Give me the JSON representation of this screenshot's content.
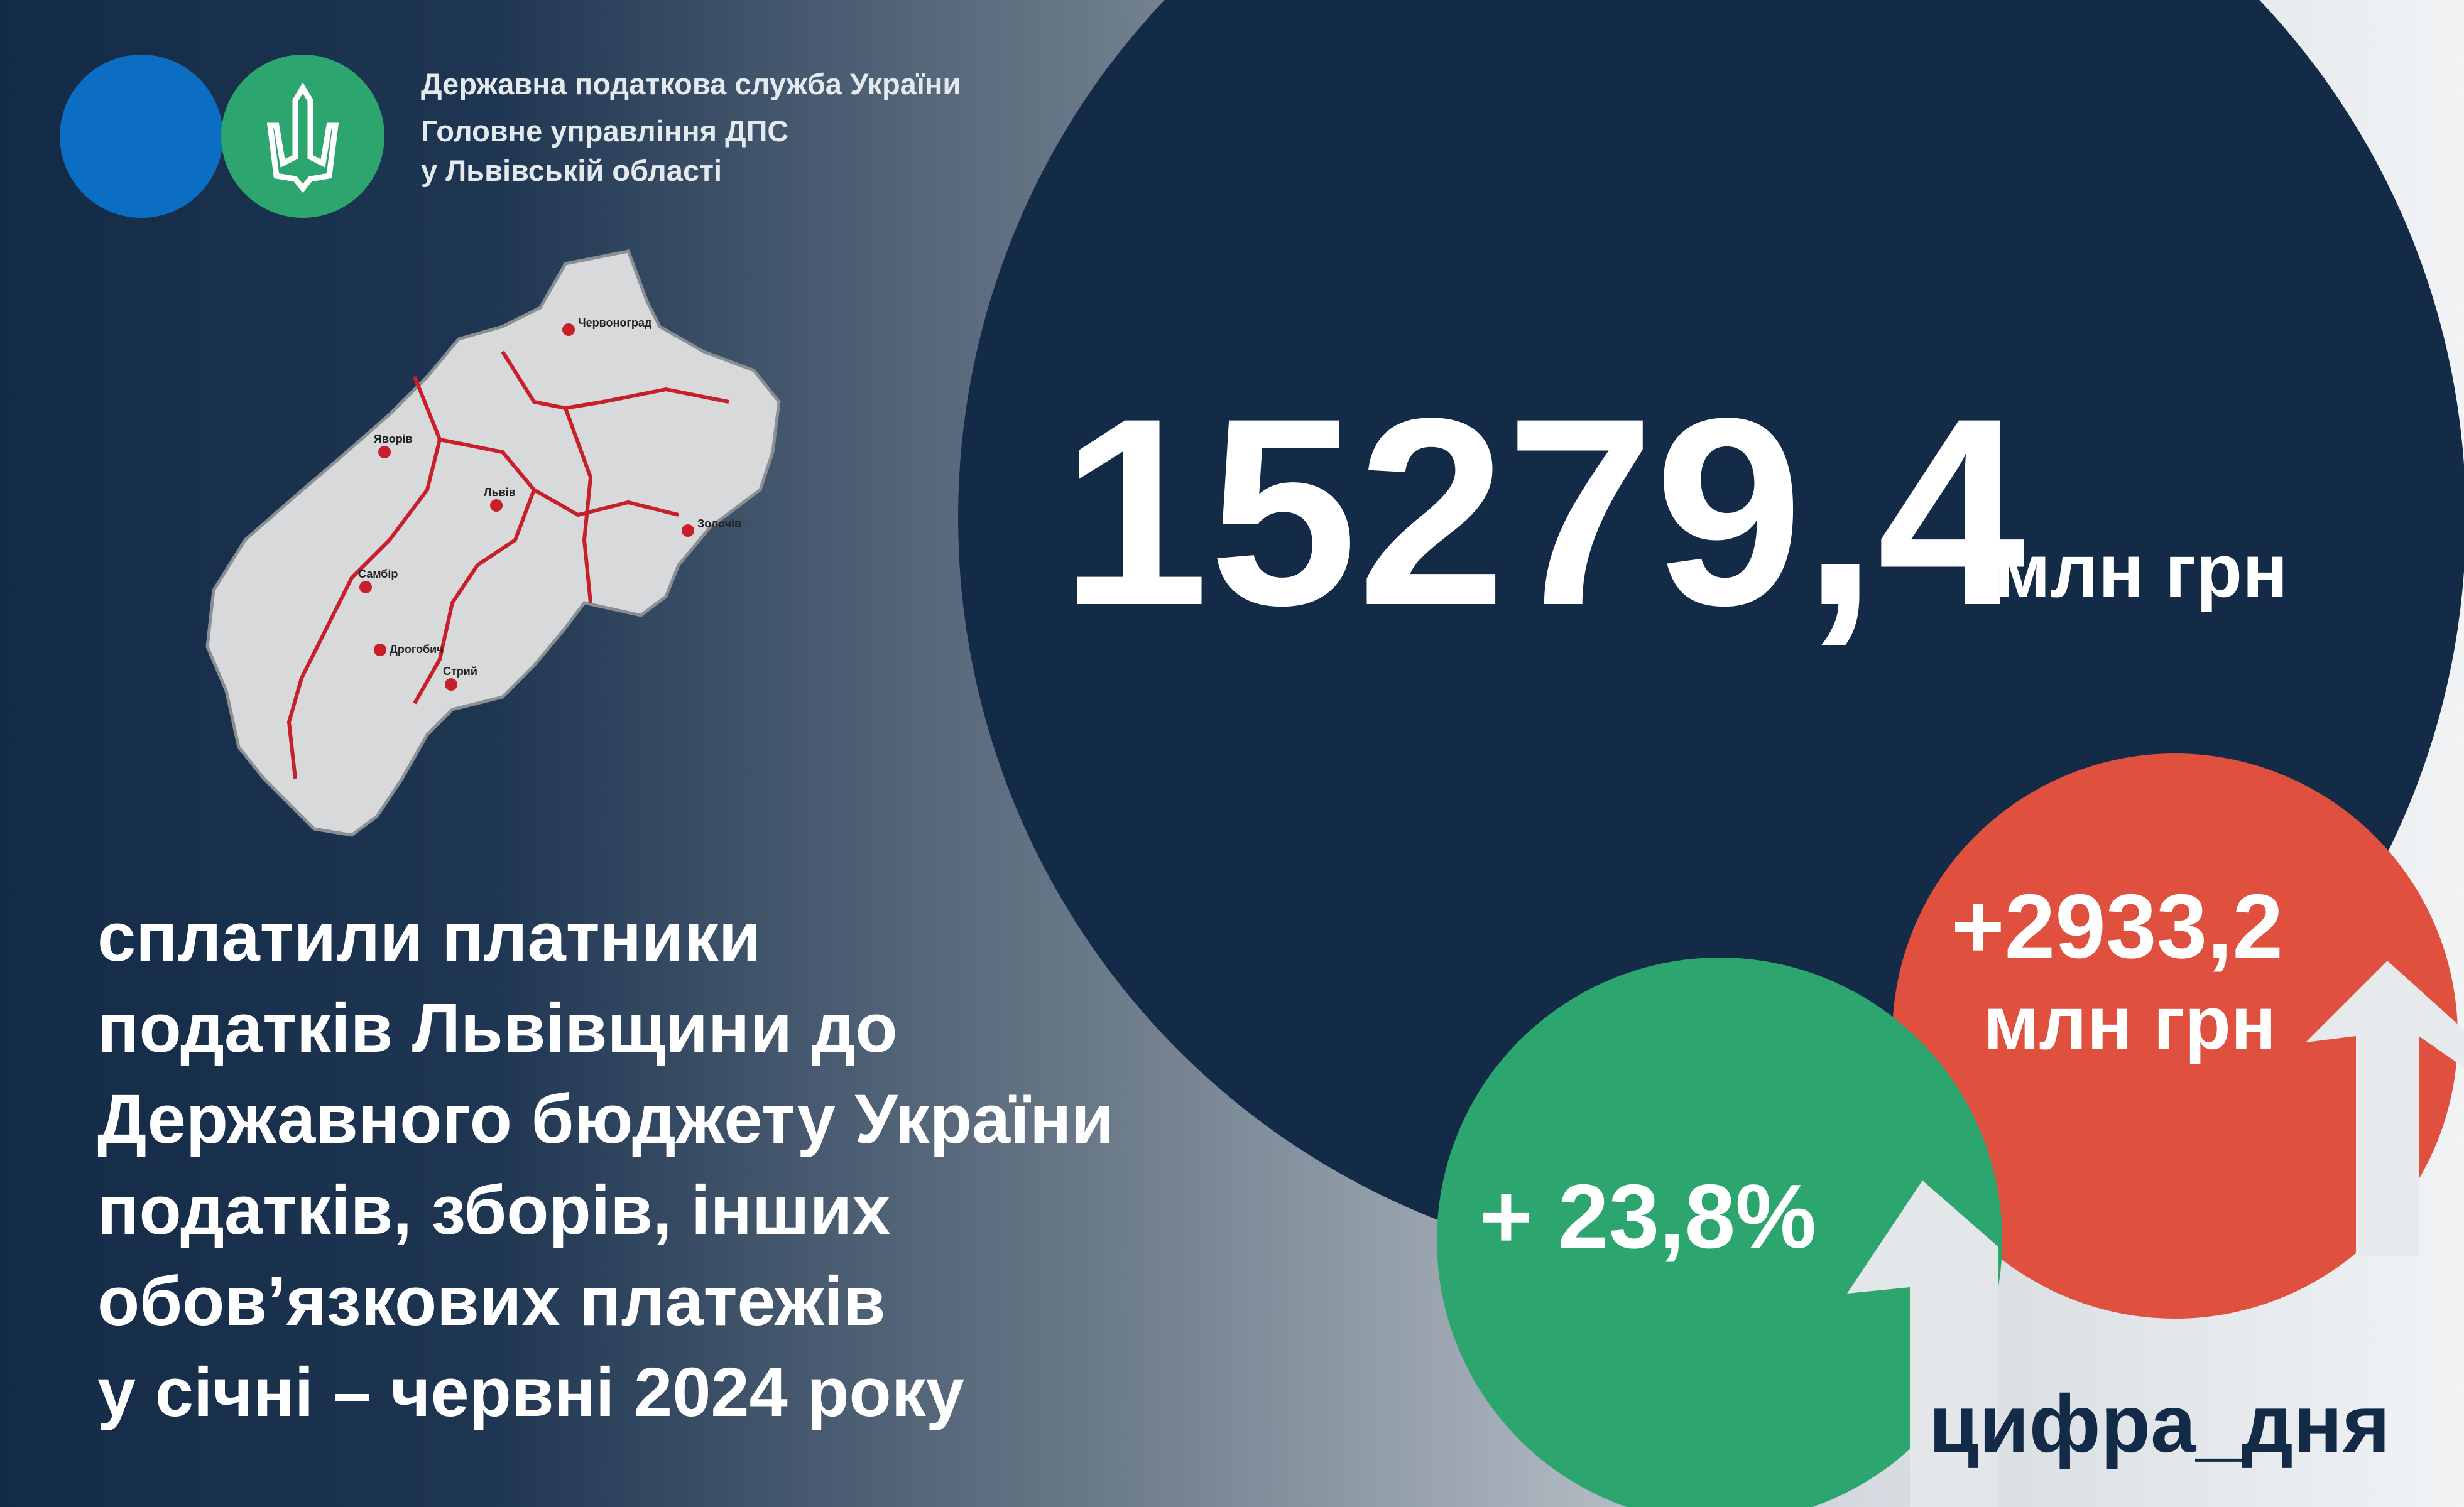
{
  "header": {
    "lines": [
      "Державна податкова служба України",
      "Головне управління ДПС",
      "у Львівській області"
    ]
  },
  "map": {
    "cities": [
      "Червоноград",
      "Яворів",
      "Львів",
      "Золочів",
      "Самбір",
      "Дрогобич",
      "Стрий"
    ]
  },
  "main": {
    "value": "15279,4",
    "unit": "млн грн"
  },
  "increase": {
    "value": "+2933,2",
    "unit": "млн грн"
  },
  "growth": {
    "value": "+ 23,8%"
  },
  "description": {
    "lines": [
      "сплатили платники",
      "податків Львівщини до",
      "Державного бюджету України",
      "податків, зборів, інших",
      "обов’язкових платежів",
      "у січні – червні 2024 року"
    ]
  },
  "hashtag": "цифра_дня"
}
